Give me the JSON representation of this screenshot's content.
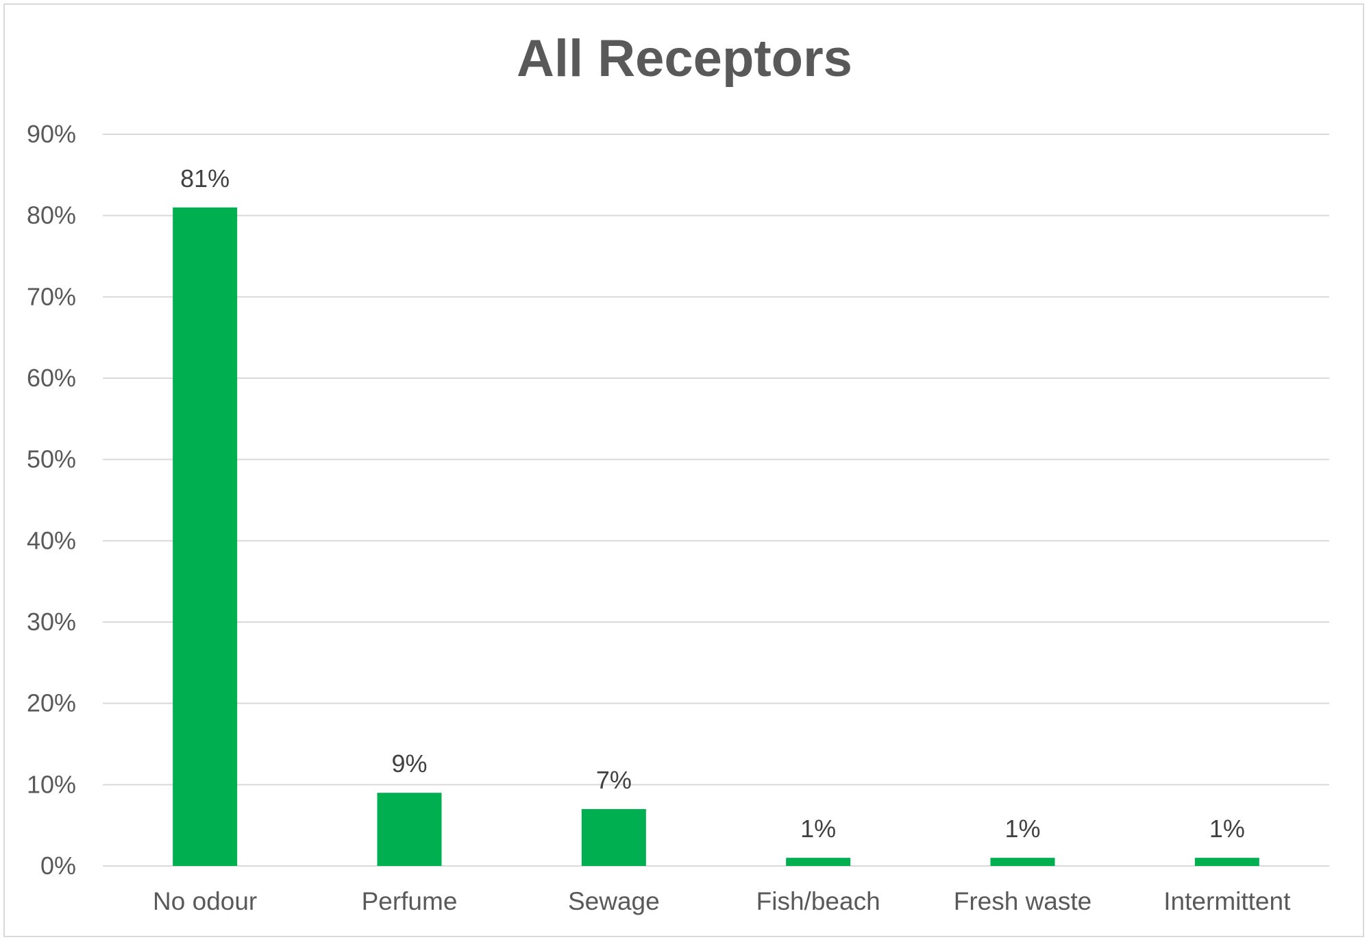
{
  "chart_data": {
    "type": "bar",
    "title": "All Receptors",
    "xlabel": "",
    "ylabel": "",
    "categories": [
      "No odour",
      "Perfume",
      "Sewage",
      "Fish/beach",
      "Fresh waste",
      "Intermittent"
    ],
    "values": [
      81,
      9,
      7,
      1,
      1,
      1
    ],
    "data_labels": [
      "81%",
      "9%",
      "7%",
      "1%",
      "1%",
      "1%"
    ],
    "ylim": [
      0,
      90
    ],
    "yticks": [
      0,
      10,
      20,
      30,
      40,
      50,
      60,
      70,
      80,
      90
    ],
    "ytick_labels": [
      "0%",
      "10%",
      "20%",
      "30%",
      "40%",
      "50%",
      "60%",
      "70%",
      "80%",
      "90%"
    ],
    "grid": true,
    "legend": "none",
    "bar_color": "#00b050",
    "grid_color": "#d9d9d9"
  }
}
